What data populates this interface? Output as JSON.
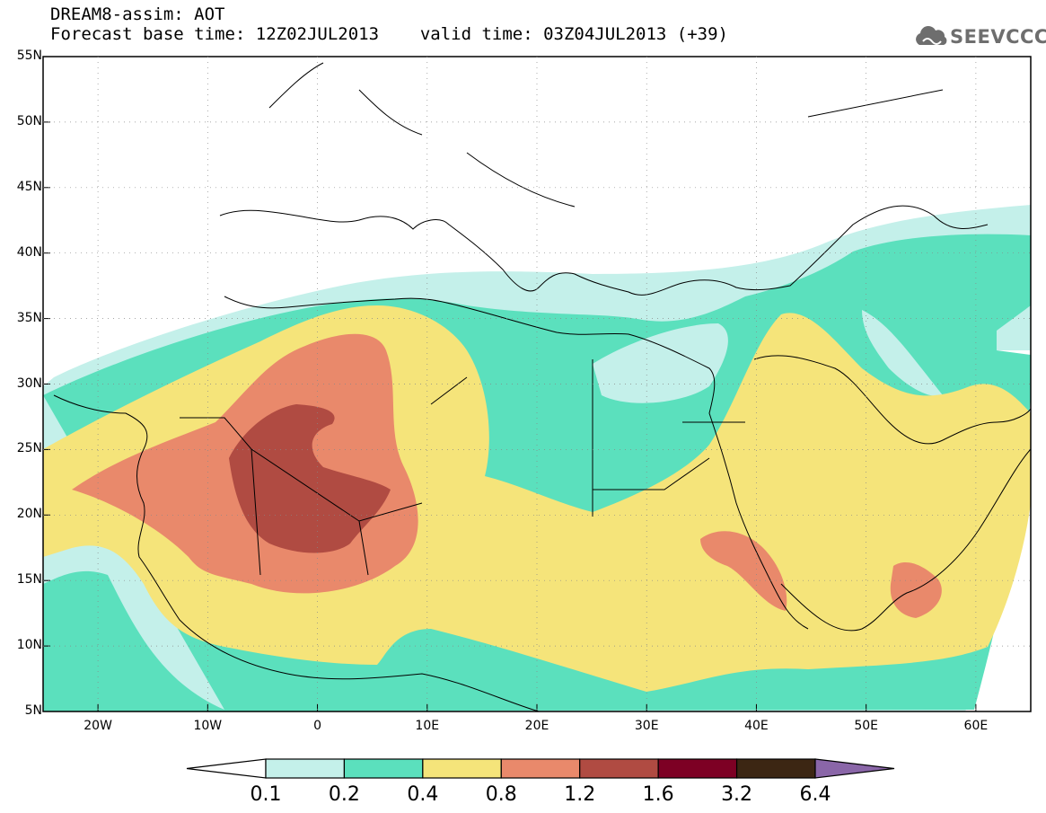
{
  "header": {
    "title": "DREAM8-assim: AOT",
    "base_label": "Forecast base time: 12Z02JUL2013",
    "valid_label": "valid time: 03Z04JUL2013 (+39)"
  },
  "logo": {
    "text": "SEEVCCC",
    "icon": "cloud-icon"
  },
  "axes": {
    "lat_labels": [
      "55N",
      "50N",
      "45N",
      "40N",
      "35N",
      "30N",
      "25N",
      "20N",
      "15N",
      "10N",
      "5N"
    ],
    "lon_labels": [
      "20W",
      "10W",
      "0",
      "10E",
      "20E",
      "30E",
      "40E",
      "50E",
      "60E"
    ]
  },
  "colorbar": {
    "labels": [
      "0.1",
      "0.2",
      "0.4",
      "0.8",
      "1.2",
      "1.6",
      "3.2",
      "6.4"
    ],
    "colors": [
      "#ffffff",
      "#c4f0ea",
      "#5be0bd",
      "#f5e47a",
      "#e9896b",
      "#b04b42",
      "#7d0024",
      "#3c2613",
      "#8a66a8"
    ]
  }
}
